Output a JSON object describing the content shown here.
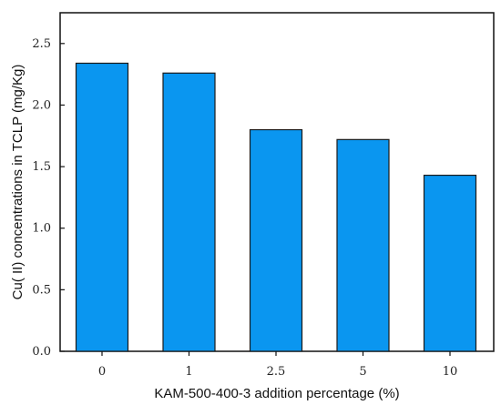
{
  "chart_data": {
    "type": "bar",
    "title": "",
    "xlabel": "KAM-500-400-3 addition percentage (%)",
    "ylabel": "Cu( II) concentrations in TCLP (mg/Kg)",
    "categories": [
      "0",
      "1",
      "2.5",
      "5",
      "10"
    ],
    "values": [
      2.34,
      2.26,
      1.8,
      1.72,
      1.43
    ],
    "ylim": [
      0,
      2.75
    ],
    "yticks": [
      "0.0",
      "0.5",
      "1.0",
      "1.5",
      "2.0",
      "2.5"
    ],
    "ytick_values": [
      0,
      0.5,
      1.0,
      1.5,
      2.0,
      2.5
    ],
    "grid": false,
    "bar_color": "#0a96f0",
    "bar_edge_color": "#1a1a1a"
  }
}
